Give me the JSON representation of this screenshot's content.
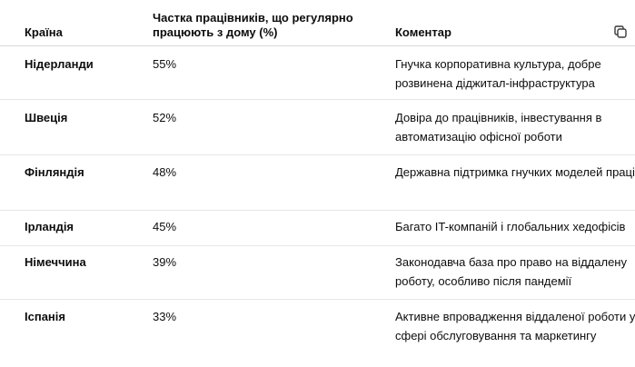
{
  "table": {
    "headers": {
      "country": "Країна",
      "share": "Частка працівників, що регулярно працюють з дому (%)",
      "comment": "Коментар"
    },
    "copy_icon": "copy-icon",
    "rows": [
      {
        "country": "Нідерланди",
        "share": "55%",
        "comment": "Гнучка корпоративна культура, добре розвинена діджитал-інфраструктура"
      },
      {
        "country": "Швеція",
        "share": "52%",
        "comment": "Довіра до працівників, інвестування в автоматизацію офісної роботи"
      },
      {
        "country": "Фінляндія",
        "share": "48%",
        "comment": "Державна підтримка гнучких моделей праці"
      },
      {
        "country": "Ірландія",
        "share": "45%",
        "comment": "Багато IT-компаній і глобальних хедофісів"
      },
      {
        "country": "Німеччина",
        "share": "39%",
        "comment": "Законодавча база про право на віддалену роботу, особливо після пандемії"
      },
      {
        "country": "Іспанія",
        "share": "33%",
        "comment": "Активне впровадження віддаленої роботи у сфері обслуговування та маркетингу"
      }
    ]
  }
}
